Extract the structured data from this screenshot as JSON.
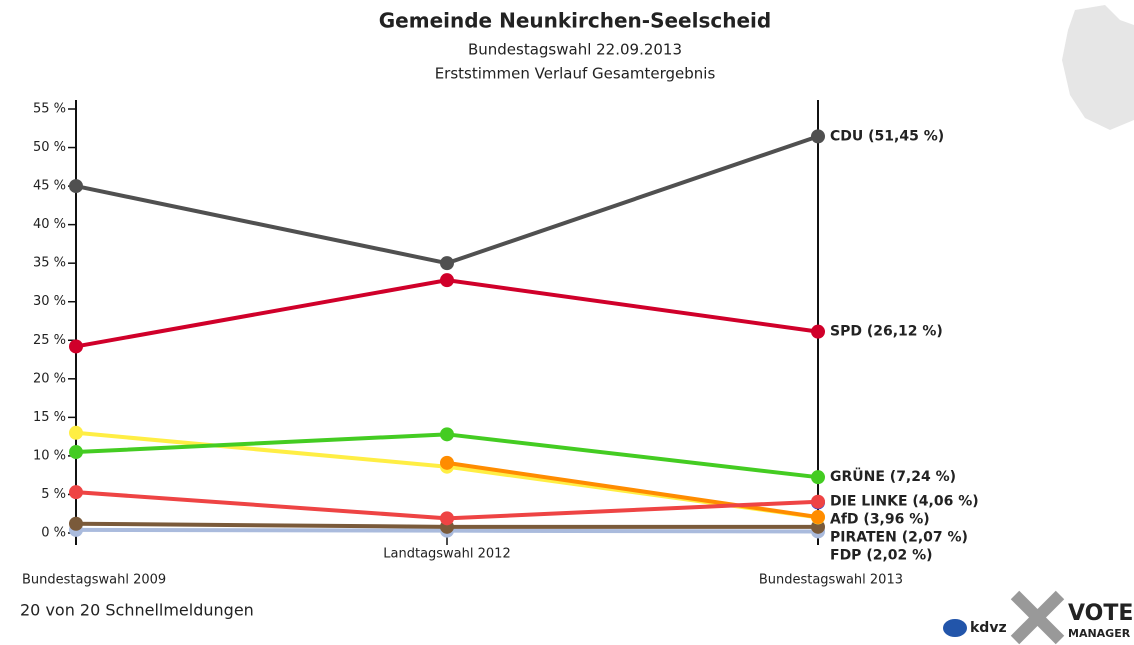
{
  "chart_data": {
    "type": "line",
    "title": "Gemeinde Neunkirchen-Seelscheid",
    "subtitle": "Bundestagswahl 22.09.2013",
    "subtitle2": "Erststimmen Verlauf Gesamtergebnis",
    "footer": "20 von 20 Schnellmeldungen",
    "logo_texts": [
      "kdvz",
      "VOTE",
      "MANAGER"
    ],
    "categories": [
      "Bundestagswahl 2009",
      "Landtagswahl 2012",
      "Bundestagswahl 2013"
    ],
    "ylim": [
      0,
      55
    ],
    "yticks": [
      {
        "value": 0,
        "label": "0 %"
      },
      {
        "value": 5,
        "label": "5 %"
      },
      {
        "value": 10,
        "label": "10 %"
      },
      {
        "value": 15,
        "label": "15 %"
      },
      {
        "value": 20,
        "label": "20 %"
      },
      {
        "value": 25,
        "label": "25 %"
      },
      {
        "value": 30,
        "label": "30 %"
      },
      {
        "value": 35,
        "label": "35 %"
      },
      {
        "value": 40,
        "label": "40 %"
      },
      {
        "value": 45,
        "label": "45 %"
      },
      {
        "value": 50,
        "label": "50 %"
      },
      {
        "value": 55,
        "label": "55 %"
      }
    ],
    "series": [
      {
        "color": "#aabbdd",
        "values": [
          0.4,
          0.3,
          0.2
        ]
      },
      {
        "color": "#7a5a3a",
        "values": [
          1.2,
          0.8,
          0.8
        ]
      },
      {
        "color": "#ffee44",
        "values": [
          13.0,
          8.6,
          2.02
        ],
        "value_labels": [
          null,
          null,
          "FDP (2,02 %)"
        ]
      },
      {
        "color": "#ff8c00",
        "values": [
          null,
          9.1,
          2.07
        ],
        "value_labels": [
          null,
          null,
          "PIRATEN (2,07 %)"
        ]
      },
      {
        "color": "#2244dd",
        "values": [
          null,
          null,
          3.96
        ],
        "value_labels": [
          null,
          null,
          "AfD (3,96 %)"
        ]
      },
      {
        "color": "#ee4444",
        "values": [
          5.3,
          1.9,
          4.06
        ],
        "value_labels": [
          null,
          null,
          "DIE LINKE (4,06 %)"
        ]
      },
      {
        "color": "#44cc22",
        "values": [
          10.5,
          12.8,
          7.24
        ],
        "value_labels": [
          null,
          null,
          "GRÜNE (7,24 %)"
        ]
      },
      {
        "color": "#d0002a",
        "values": [
          24.2,
          32.8,
          26.12
        ],
        "value_labels": [
          null,
          null,
          "SPD (26,12 %)"
        ]
      },
      {
        "color": "#505050",
        "values": [
          45.0,
          35.0,
          51.45
        ],
        "value_labels": [
          null,
          null,
          "CDU (51,45 %)"
        ]
      }
    ]
  }
}
